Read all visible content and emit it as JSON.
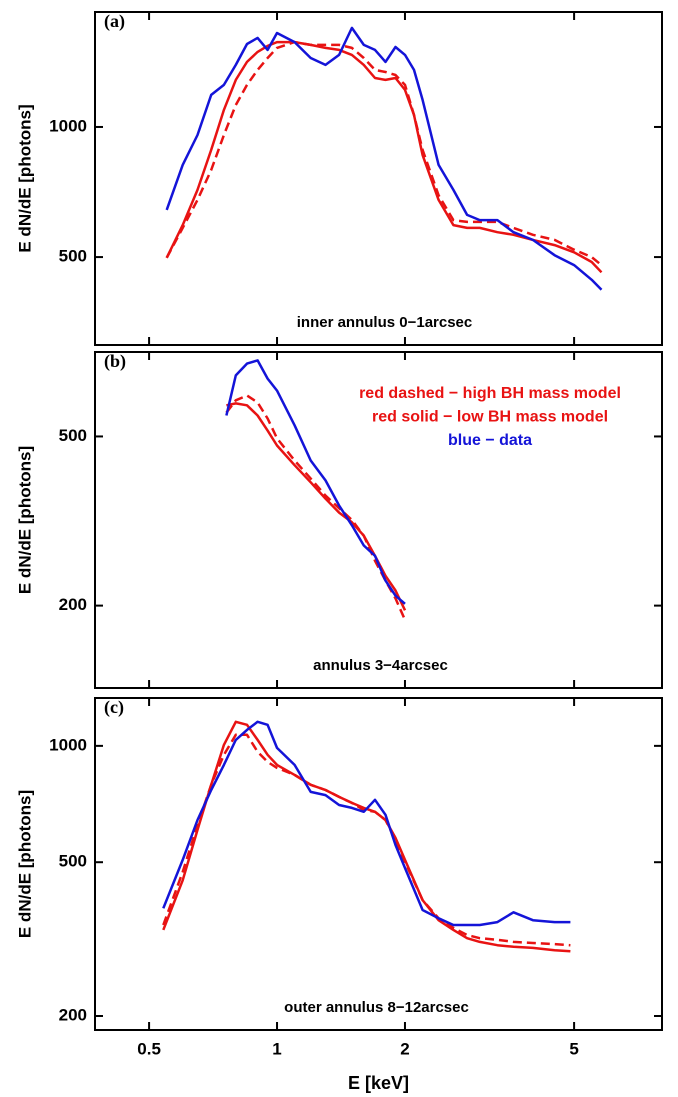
{
  "chart_data": [
    {
      "type": "line",
      "label": "(a)",
      "annotation": "inner annulus 0−1arcsec",
      "y_label": "E dN/dE [photons]",
      "xscale": "log",
      "yscale": "log",
      "xlim": [
        0.373,
        8.05
      ],
      "ylim": [
        313,
        1845
      ],
      "xticks": [
        0.5,
        1,
        2,
        5
      ],
      "yticks": [
        500,
        1000
      ],
      "x": [
        0.55,
        0.6,
        0.65,
        0.7,
        0.75,
        0.8,
        0.85,
        0.9,
        0.95,
        1,
        1.1,
        1.2,
        1.3,
        1.4,
        1.5,
        1.6,
        1.7,
        1.8,
        1.9,
        2,
        2.1,
        2.2,
        2.4,
        2.6,
        2.8,
        3,
        3.3,
        3.6,
        4,
        4.5,
        5,
        5.5,
        5.8
      ],
      "series": [
        {
          "color": "#e81313",
          "dashed": true,
          "values": [
            498,
            584,
            678,
            795,
            958,
            1124,
            1251,
            1355,
            1444,
            1524,
            1572,
            1548,
            1548,
            1548,
            1524,
            1444,
            1355,
            1340,
            1319,
            1251,
            1066,
            885,
            695,
            609,
            603,
            603,
            603,
            584,
            563,
            548,
            520,
            500,
            479
          ]
        },
        {
          "color": "#e81313",
          "dashed": false,
          "values": [
            498,
            593,
            715,
            885,
            1095,
            1285,
            1414,
            1492,
            1540,
            1572,
            1572,
            1548,
            1524,
            1508,
            1468,
            1392,
            1298,
            1285,
            1298,
            1218,
            1066,
            861,
            678,
            593,
            584,
            584,
            571,
            563,
            548,
            533,
            513,
            487,
            461
          ]
        },
        {
          "color": "#1414d8",
          "dashed": false,
          "values": [
            643,
            817,
            958,
            1186,
            1251,
            1392,
            1556,
            1607,
            1508,
            1650,
            1572,
            1444,
            1392,
            1468,
            1695,
            1548,
            1508,
            1414,
            1531,
            1468,
            1355,
            1155,
            817,
            715,
            626,
            609,
            609,
            571,
            548,
            505,
            479,
            443,
            420
          ]
        }
      ]
    },
    {
      "type": "line",
      "label": "(b)",
      "annotation": "annulus 3−4arcsec",
      "y_label": "E dN/dE [photons]",
      "xscale": "log",
      "yscale": "log",
      "xlim": [
        0.373,
        8.05
      ],
      "ylim": [
        128,
        790
      ],
      "xticks": [
        0.5,
        1,
        2,
        5
      ],
      "yticks": [
        200,
        500
      ],
      "x": [
        0.76,
        0.8,
        0.85,
        0.9,
        0.95,
        1,
        1.1,
        1.2,
        1.3,
        1.4,
        1.5,
        1.6,
        1.7,
        1.8,
        1.9,
        2
      ],
      "series": [
        {
          "name": "red dashed − high BH mass model",
          "color": "#e81313",
          "dashed": true,
          "values": [
            569,
            608,
            624,
            601,
            551,
            495,
            439,
            398,
            363,
            339,
            318,
            292,
            255,
            229,
            208,
            185
          ]
        },
        {
          "name": "red solid − low BH mass model",
          "color": "#e81313",
          "dashed": false,
          "values": [
            592,
            598,
            592,
            560,
            516,
            476,
            428,
            390,
            357,
            331,
            314,
            292,
            262,
            235,
            217,
            195
          ]
        },
        {
          "name": "blue − data",
          "color": "#1414d8",
          "dashed": false,
          "values": [
            560,
            696,
            742,
            755,
            684,
            641,
            531,
            439,
            394,
            344,
            309,
            277,
            262,
            229,
            211,
            202
          ]
        }
      ]
    },
    {
      "type": "line",
      "label": "(c)",
      "annotation": "outer annulus 8−12arcsec",
      "y_label": "E dN/dE [photons]",
      "x_label": "E [keV]",
      "xscale": "log",
      "yscale": "log",
      "xlim": [
        0.373,
        8.05
      ],
      "ylim": [
        184,
        1330
      ],
      "xticks": [
        0.5,
        1,
        2,
        5
      ],
      "yticks": [
        200,
        500,
        1000
      ],
      "x": [
        0.54,
        0.6,
        0.65,
        0.7,
        0.75,
        0.8,
        0.85,
        0.9,
        0.95,
        1,
        1.1,
        1.2,
        1.3,
        1.4,
        1.5,
        1.6,
        1.7,
        1.8,
        1.9,
        2,
        2.2,
        2.4,
        2.6,
        2.8,
        3,
        3.3,
        3.6,
        4,
        4.5,
        4.9
      ],
      "series": [
        {
          "color": "#e81313",
          "dashed": true,
          "values": [
            344,
            472,
            624,
            793,
            948,
            1068,
            1068,
            965,
            909,
            877,
            841,
            793,
            769,
            738,
            712,
            683,
            675,
            643,
            571,
            501,
            399,
            358,
            338,
            324,
            318,
            315,
            311,
            309,
            307,
            305
          ]
        },
        {
          "color": "#e81313",
          "dashed": false,
          "values": [
            334,
            449,
            606,
            793,
            1006,
            1154,
            1134,
            1036,
            948,
            893,
            841,
            793,
            769,
            738,
            712,
            691,
            675,
            643,
            578,
            507,
            399,
            354,
            334,
            318,
            311,
            305,
            302,
            300,
            296,
            294
          ]
        },
        {
          "color": "#1414d8",
          "dashed": false,
          "values": [
            380,
            507,
            643,
            769,
            893,
            1036,
            1100,
            1154,
            1134,
            988,
            893,
            760,
            746,
            703,
            691,
            675,
            725,
            663,
            554,
            483,
            376,
            358,
            344,
            344,
            344,
            350,
            371,
            354,
            350,
            350
          ]
        }
      ]
    }
  ]
}
